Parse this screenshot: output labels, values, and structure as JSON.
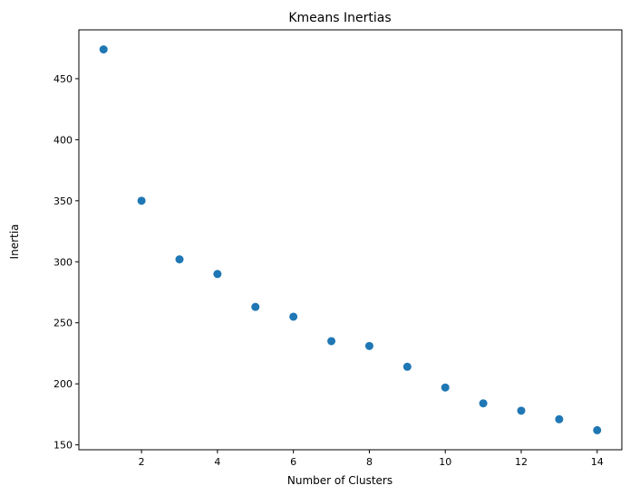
{
  "chart_data": {
    "type": "scatter",
    "title": "Kmeans Inertias",
    "xlabel": "Number of Clusters",
    "ylabel": "Inertia",
    "x": [
      1,
      2,
      3,
      4,
      5,
      6,
      7,
      8,
      9,
      10,
      11,
      12,
      13,
      14
    ],
    "y": [
      474,
      350,
      302,
      290,
      263,
      255,
      235,
      231,
      214,
      197,
      184,
      178,
      171,
      162
    ],
    "xlim": [
      0.35,
      14.65
    ],
    "ylim": [
      146,
      490
    ],
    "xticks": [
      2,
      4,
      6,
      8,
      10,
      12,
      14
    ],
    "yticks": [
      150,
      200,
      250,
      300,
      350,
      400,
      450
    ],
    "grid": false,
    "marker_color": "#1f77b4"
  }
}
